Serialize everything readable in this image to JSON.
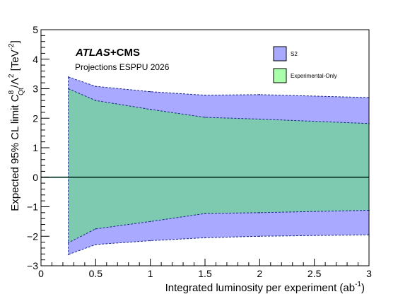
{
  "chart_data": {
    "type": "area",
    "title": "",
    "experiment_label": {
      "bold": "ATLAS",
      "rest": "+CMS"
    },
    "subtitle": "Projections ESPPU 2026",
    "ylabel": {
      "text1": "Expected 95% CL limit C",
      "sup1": "8",
      "sub1": "Qt",
      "text2": "/Λ",
      "sup2": "2",
      "text3": " [TeV",
      "sup3": "-2",
      "text4": "]"
    },
    "xlabel": {
      "text": "Integrated luminosity per experiment (ab",
      "sup": "-1",
      "close": ")"
    },
    "xlim": [
      0,
      3
    ],
    "ylim": [
      -3,
      5
    ],
    "xticks": [
      "0",
      "0.5",
      "1",
      "1.5",
      "2",
      "2.5",
      "3"
    ],
    "yticks": [
      "−3",
      "−2",
      "−1",
      "0",
      "1",
      "2",
      "3",
      "4",
      "5"
    ],
    "x": [
      0.25,
      0.5,
      1,
      1.5,
      2,
      3
    ],
    "series": [
      {
        "name": "S2",
        "color": "#a9a9ff",
        "upper": [
          3.4,
          3.08,
          2.9,
          2.78,
          2.8,
          2.7
        ],
        "lower": [
          -2.62,
          -2.28,
          -2.15,
          -2.05,
          -2.0,
          -1.95
        ]
      },
      {
        "name": "Experimental-Only",
        "color": "#7ecab0",
        "upper": [
          3.0,
          2.6,
          2.3,
          2.03,
          1.97,
          1.82
        ],
        "lower": [
          -2.22,
          -1.75,
          -1.5,
          -1.23,
          -1.2,
          -1.12
        ]
      }
    ],
    "legend": [
      {
        "label": "S2",
        "color": "#a9a9ff"
      },
      {
        "label": "Experimental-Only",
        "color": "#aaffaa"
      }
    ],
    "reference_line_y": 0,
    "legend_position": "top-right",
    "grid": false
  }
}
